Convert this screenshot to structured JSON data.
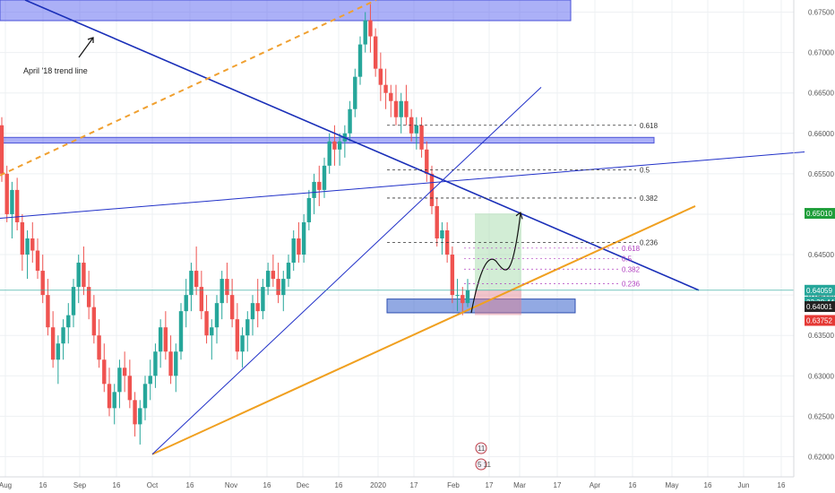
{
  "chart_data": {
    "type": "candlestick",
    "symbol_pair_hint": "",
    "y_range": [
      0.6175,
      0.6765
    ],
    "y_ticks": [
      "0.67500",
      "0.67000",
      "0.66500",
      "0.66000",
      "0.65500",
      "0.65000",
      "0.64500",
      "0.64000",
      "0.63500",
      "0.63000",
      "0.62500",
      "0.62000"
    ],
    "x_ticks": [
      "Aug",
      "16",
      "Sep",
      "16",
      "Oct",
      "16",
      "Nov",
      "16",
      "Dec",
      "16",
      "2020",
      "17",
      "Feb",
      "17",
      "Mar",
      "17",
      "Apr",
      "16",
      "May",
      "16",
      "Jun",
      "16"
    ],
    "price_badges": [
      {
        "label": "0.65010",
        "color": "#1e9e3a"
      },
      {
        "label": "0.64059",
        "color": "#26a69a"
      },
      {
        "label": "23:38:44",
        "color": "#26a69a"
      },
      {
        "label": "0.64001",
        "color": "#222222"
      },
      {
        "label": "0.63752",
        "color": "#e53935"
      }
    ],
    "fib_levels": [
      "0.618",
      "0.5",
      "0.382",
      "0.236"
    ],
    "fib_levels_small": [
      "0.618",
      "0.5",
      "0.382",
      "0.236"
    ],
    "annotation": "April '18 trend line",
    "event_markers": [
      "11",
      "5 11"
    ],
    "series": [
      {
        "name": "",
        "kind": "candles",
        "ohlc": [
          [
            0.661,
            0.662,
            0.654,
            0.655
          ],
          [
            0.655,
            0.656,
            0.649,
            0.65
          ],
          [
            0.65,
            0.654,
            0.647,
            0.653
          ],
          [
            0.653,
            0.6545,
            0.648,
            0.649
          ],
          [
            0.649,
            0.65,
            0.643,
            0.645
          ],
          [
            0.645,
            0.648,
            0.642,
            0.647
          ],
          [
            0.647,
            0.649,
            0.644,
            0.6455
          ],
          [
            0.6455,
            0.647,
            0.642,
            0.643
          ],
          [
            0.643,
            0.645,
            0.639,
            0.64
          ],
          [
            0.64,
            0.642,
            0.635,
            0.636
          ],
          [
            0.636,
            0.638,
            0.631,
            0.632
          ],
          [
            0.632,
            0.635,
            0.629,
            0.634
          ],
          [
            0.634,
            0.637,
            0.632,
            0.636
          ],
          [
            0.636,
            0.639,
            0.634,
            0.6375
          ],
          [
            0.6375,
            0.642,
            0.636,
            0.641
          ],
          [
            0.641,
            0.645,
            0.639,
            0.644
          ],
          [
            0.644,
            0.646,
            0.64,
            0.641
          ],
          [
            0.641,
            0.643,
            0.637,
            0.6385
          ],
          [
            0.6385,
            0.64,
            0.634,
            0.635
          ],
          [
            0.635,
            0.637,
            0.631,
            0.632
          ],
          [
            0.632,
            0.634,
            0.628,
            0.629
          ],
          [
            0.629,
            0.631,
            0.625,
            0.626
          ],
          [
            0.626,
            0.629,
            0.624,
            0.628
          ],
          [
            0.628,
            0.632,
            0.626,
            0.631
          ],
          [
            0.631,
            0.633,
            0.628,
            0.63
          ],
          [
            0.63,
            0.632,
            0.626,
            0.627
          ],
          [
            0.627,
            0.628,
            0.6225,
            0.624
          ],
          [
            0.624,
            0.627,
            0.6215,
            0.626
          ],
          [
            0.626,
            0.63,
            0.6245,
            0.629
          ],
          [
            0.629,
            0.632,
            0.627,
            0.63
          ],
          [
            0.63,
            0.634,
            0.6285,
            0.633
          ],
          [
            0.633,
            0.637,
            0.631,
            0.636
          ],
          [
            0.636,
            0.638,
            0.632,
            0.633
          ],
          [
            0.633,
            0.635,
            0.629,
            0.63
          ],
          [
            0.63,
            0.634,
            0.628,
            0.633
          ],
          [
            0.633,
            0.639,
            0.632,
            0.638
          ],
          [
            0.638,
            0.642,
            0.636,
            0.64
          ],
          [
            0.64,
            0.644,
            0.638,
            0.643
          ],
          [
            0.643,
            0.646,
            0.64,
            0.641
          ],
          [
            0.641,
            0.643,
            0.637,
            0.638
          ],
          [
            0.638,
            0.64,
            0.634,
            0.635
          ],
          [
            0.635,
            0.637,
            0.632,
            0.636
          ],
          [
            0.636,
            0.64,
            0.634,
            0.639
          ],
          [
            0.639,
            0.643,
            0.637,
            0.642
          ],
          [
            0.642,
            0.644,
            0.639,
            0.64
          ],
          [
            0.64,
            0.642,
            0.636,
            0.637
          ],
          [
            0.637,
            0.639,
            0.632,
            0.633
          ],
          [
            0.633,
            0.636,
            0.631,
            0.635
          ],
          [
            0.635,
            0.638,
            0.633,
            0.637
          ],
          [
            0.637,
            0.64,
            0.635,
            0.639
          ],
          [
            0.639,
            0.642,
            0.636,
            0.638
          ],
          [
            0.638,
            0.642,
            0.637,
            0.641
          ],
          [
            0.641,
            0.644,
            0.64,
            0.643
          ],
          [
            0.643,
            0.645,
            0.641,
            0.642
          ],
          [
            0.642,
            0.644,
            0.639,
            0.64
          ],
          [
            0.64,
            0.643,
            0.638,
            0.642
          ],
          [
            0.642,
            0.645,
            0.641,
            0.644
          ],
          [
            0.644,
            0.648,
            0.643,
            0.647
          ],
          [
            0.647,
            0.649,
            0.644,
            0.645
          ],
          [
            0.645,
            0.65,
            0.644,
            0.649
          ],
          [
            0.649,
            0.653,
            0.648,
            0.652
          ],
          [
            0.652,
            0.655,
            0.65,
            0.654
          ],
          [
            0.654,
            0.656,
            0.651,
            0.653
          ],
          [
            0.653,
            0.657,
            0.652,
            0.656
          ],
          [
            0.656,
            0.66,
            0.655,
            0.659
          ],
          [
            0.659,
            0.661,
            0.656,
            0.658
          ],
          [
            0.658,
            0.66,
            0.656,
            0.659
          ],
          [
            0.659,
            0.661,
            0.657,
            0.66
          ],
          [
            0.66,
            0.664,
            0.659,
            0.663
          ],
          [
            0.663,
            0.668,
            0.662,
            0.667
          ],
          [
            0.667,
            0.672,
            0.666,
            0.671
          ],
          [
            0.671,
            0.675,
            0.67,
            0.674
          ],
          [
            0.674,
            0.676,
            0.67,
            0.672
          ],
          [
            0.672,
            0.673,
            0.667,
            0.668
          ],
          [
            0.668,
            0.67,
            0.664,
            0.666
          ],
          [
            0.666,
            0.668,
            0.663,
            0.665
          ],
          [
            0.665,
            0.666,
            0.662,
            0.664
          ],
          [
            0.664,
            0.666,
            0.661,
            0.662
          ],
          [
            0.662,
            0.665,
            0.66,
            0.664
          ],
          [
            0.664,
            0.666,
            0.661,
            0.662
          ],
          [
            0.662,
            0.663,
            0.659,
            0.66
          ],
          [
            0.66,
            0.662,
            0.658,
            0.661
          ],
          [
            0.661,
            0.662,
            0.657,
            0.658
          ],
          [
            0.658,
            0.659,
            0.654,
            0.655
          ],
          [
            0.655,
            0.656,
            0.65,
            0.651
          ],
          [
            0.651,
            0.652,
            0.646,
            0.647
          ],
          [
            0.647,
            0.649,
            0.645,
            0.648
          ],
          [
            0.648,
            0.649,
            0.644,
            0.645
          ],
          [
            0.645,
            0.646,
            0.639,
            0.64
          ],
          [
            0.64,
            0.642,
            0.638,
            0.64
          ],
          [
            0.64,
            0.641,
            0.6375,
            0.639
          ],
          [
            0.639,
            0.642,
            0.6385,
            0.6406
          ]
        ]
      }
    ],
    "grid": true,
    "legend": "none"
  }
}
